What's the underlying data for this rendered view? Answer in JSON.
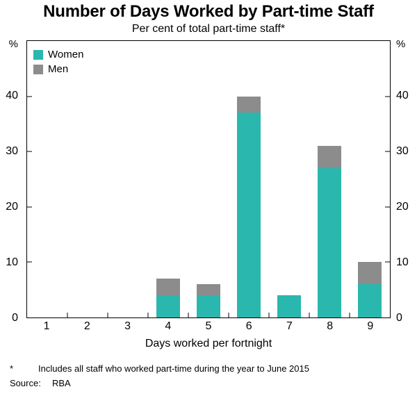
{
  "title": "Number of Days Worked by Part-time Staff",
  "subtitle": "Per cent of total part-time staff*",
  "axis": {
    "left_unit": "%",
    "right_unit": "%",
    "yticks": [
      0,
      10,
      20,
      30,
      40
    ],
    "xlabel": "Days worked per fortnight"
  },
  "legend": [
    {
      "label": "Women",
      "color": "#2ab7ae"
    },
    {
      "label": "Men",
      "color": "#8c8c8c"
    }
  ],
  "chart_data": {
    "type": "bar",
    "stacked": true,
    "title": "Number of Days Worked by Part-time Staff",
    "subtitle": "Per cent of total part-time staff*",
    "xlabel": "Days worked per fortnight",
    "ylabel": "%",
    "ylim": [
      0,
      50
    ],
    "yticks": [
      0,
      10,
      20,
      30,
      40
    ],
    "grid": false,
    "legend_position": "top-left-inside",
    "categories": [
      "1",
      "2",
      "3",
      "4",
      "5",
      "6",
      "7",
      "8",
      "9"
    ],
    "series": [
      {
        "name": "Women",
        "color": "#2ab7ae",
        "values": [
          0,
          0,
          0,
          4,
          4,
          37,
          4,
          27,
          6
        ]
      },
      {
        "name": "Men",
        "color": "#8c8c8c",
        "values": [
          0,
          0,
          0,
          3,
          2,
          3,
          0,
          4,
          4
        ]
      }
    ],
    "totals": [
      0,
      0,
      0,
      7,
      6,
      40,
      4,
      31,
      10
    ]
  },
  "footnotes": {
    "asterisk": "*",
    "note": "Includes all staff who worked part-time during the year to June 2015",
    "source_label": "Source:",
    "source_value": "RBA"
  }
}
